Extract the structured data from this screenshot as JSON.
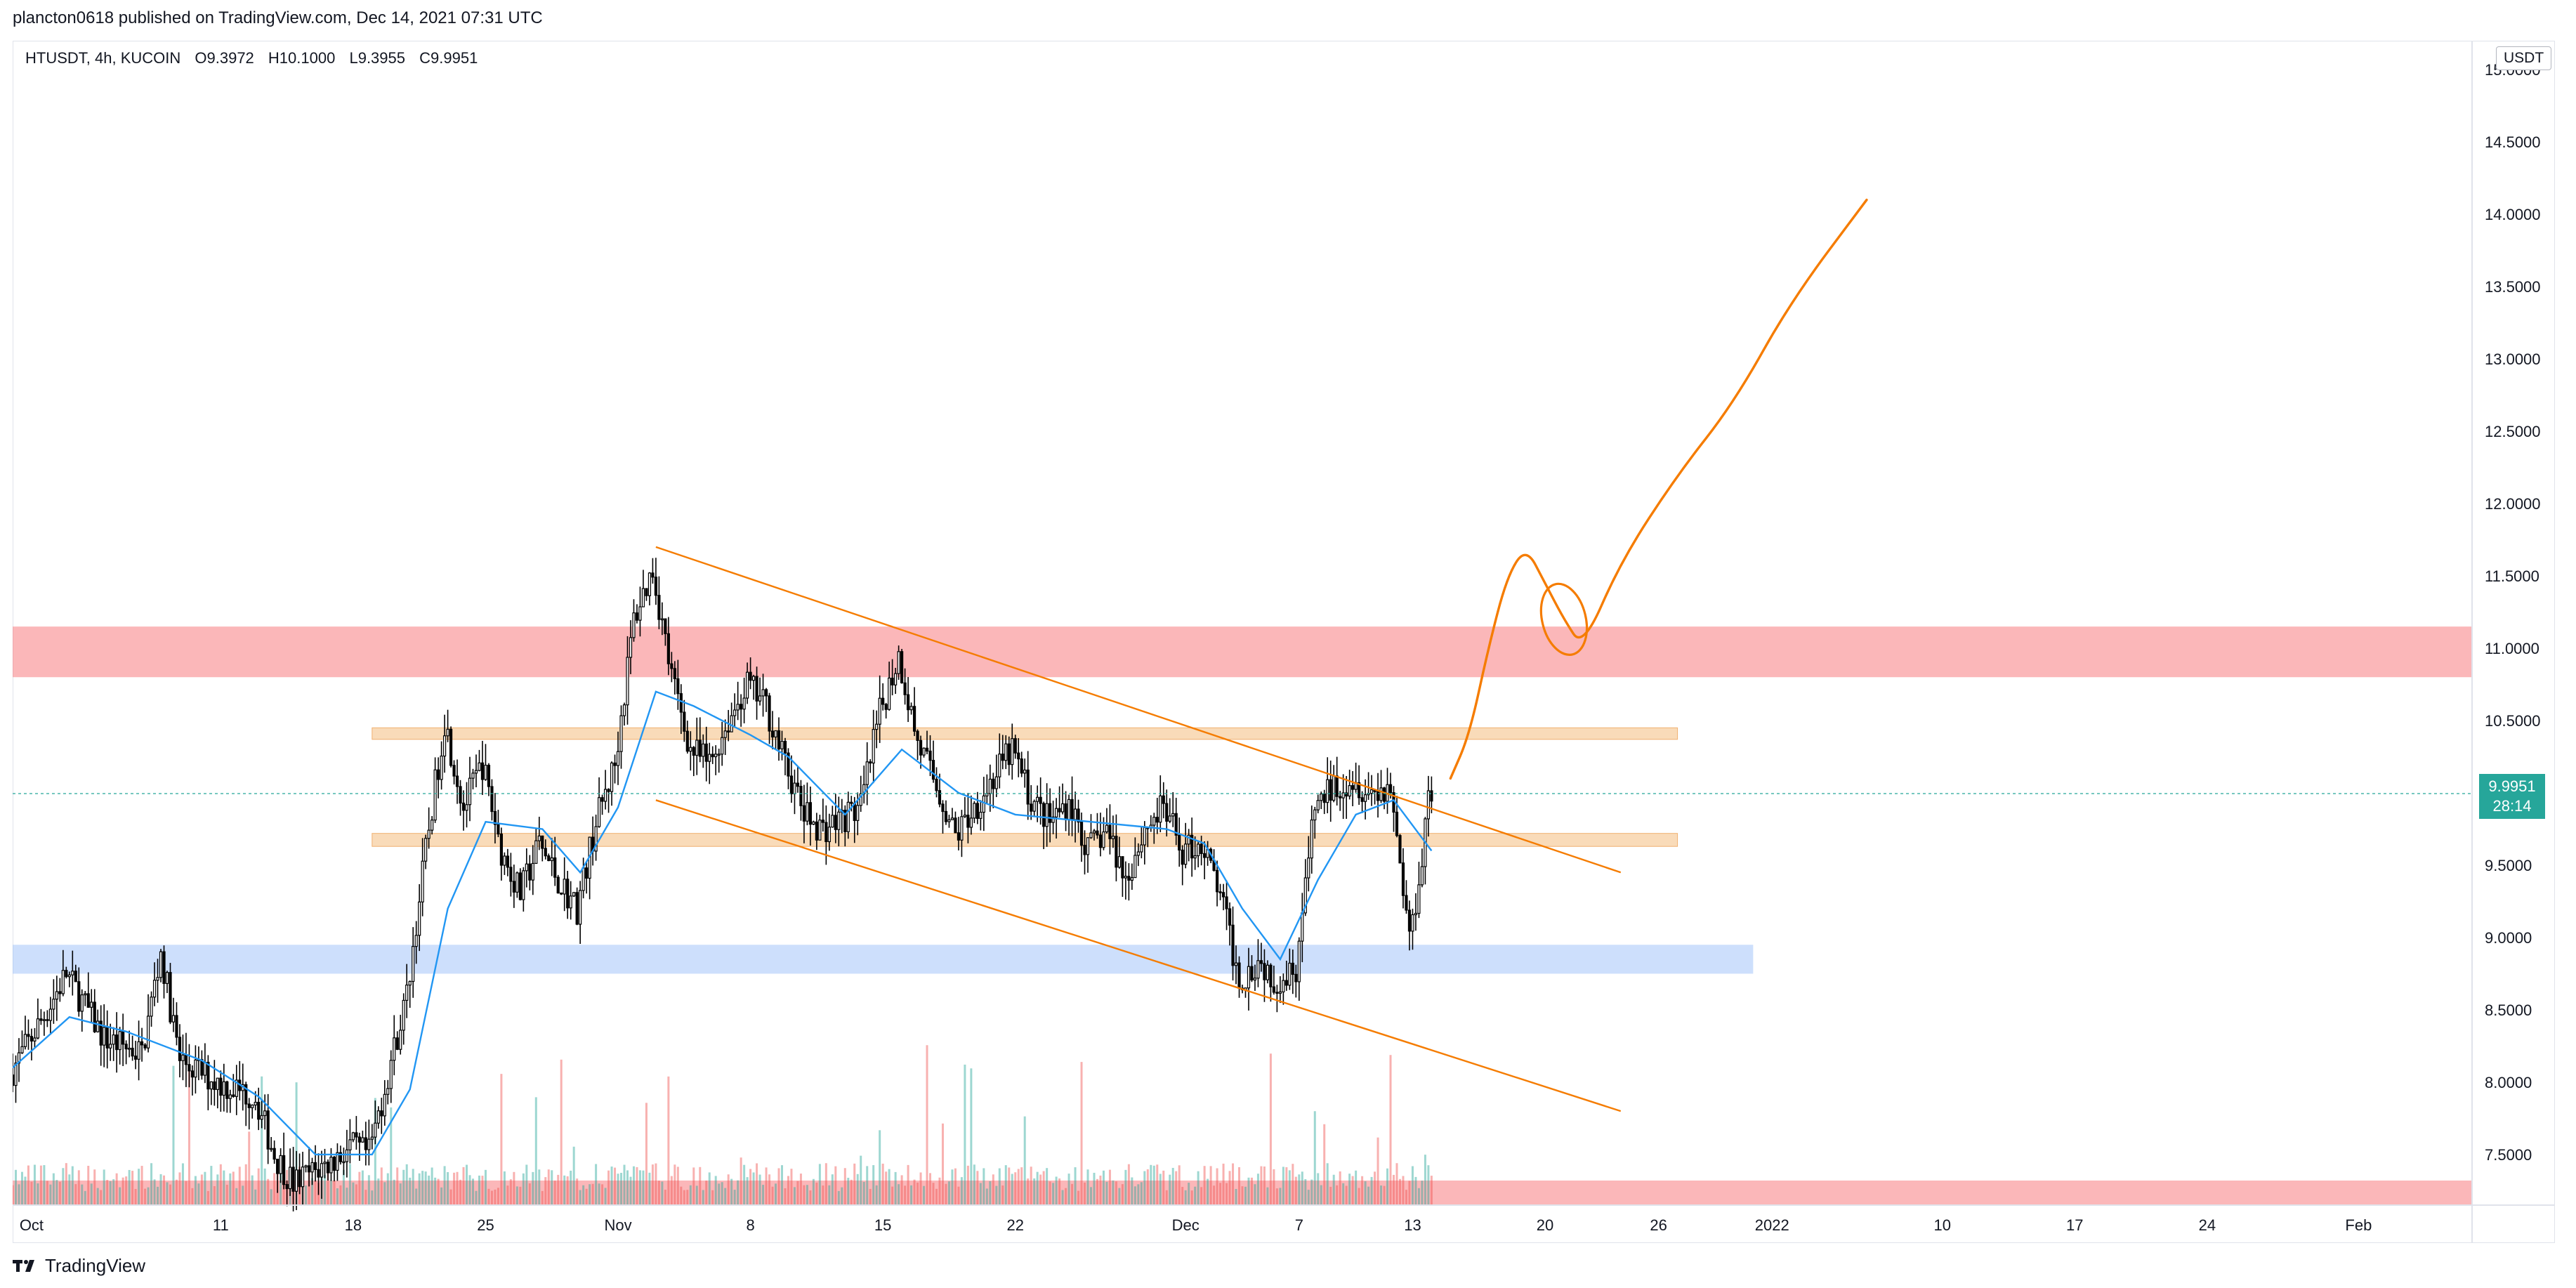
{
  "header": {
    "published": "plancton0618 published on TradingView.com, Dec 14, 2021 07:31 UTC"
  },
  "legend": {
    "symbol": "HTUSDT, 4h, KUCOIN",
    "open": "O9.3972",
    "high": "H10.1000",
    "low": "L9.3955",
    "close": "C9.9951"
  },
  "currency": "USDT",
  "price_tag": {
    "price": "9.9951",
    "countdown": "28:14"
  },
  "footer": {
    "brand": "TradingView"
  },
  "colors": {
    "up": "#26a69a",
    "down": "#ef5350",
    "candle_down_body": "#000000",
    "ma": "#2196f3",
    "trendline": "#f57c00",
    "resistance_zone": "#f77c80",
    "support_zone": "#90b8f8",
    "sr_zone": "#f5c38b"
  },
  "chart_data": {
    "type": "candlestick",
    "title": "HTUSDT, 4h, KUCOIN",
    "ylim": [
      7.15,
      15.2
    ],
    "y_ticks": [
      "15.0000",
      "14.5000",
      "14.0000",
      "13.5000",
      "13.0000",
      "12.5000",
      "12.0000",
      "11.5000",
      "11.0000",
      "10.5000",
      "10.0000",
      "9.5000",
      "9.0000",
      "8.5000",
      "8.0000",
      "7.5000"
    ],
    "x_range": [
      "2021-09-30",
      "2022-02-07"
    ],
    "x_ticks": [
      {
        "label": "Oct",
        "date": "2021-10-01"
      },
      {
        "label": "11",
        "date": "2021-10-11"
      },
      {
        "label": "18",
        "date": "2021-10-18"
      },
      {
        "label": "25",
        "date": "2021-10-25"
      },
      {
        "label": "Nov",
        "date": "2021-11-01"
      },
      {
        "label": "8",
        "date": "2021-11-08"
      },
      {
        "label": "15",
        "date": "2021-11-15"
      },
      {
        "label": "22",
        "date": "2021-11-22"
      },
      {
        "label": "Dec",
        "date": "2021-12-01"
      },
      {
        "label": "7",
        "date": "2021-12-07"
      },
      {
        "label": "13",
        "date": "2021-12-13"
      },
      {
        "label": "20",
        "date": "2021-12-20"
      },
      {
        "label": "26",
        "date": "2021-12-26"
      },
      {
        "label": "2022",
        "date": "2022-01-01"
      },
      {
        "label": "10",
        "date": "2022-01-10"
      },
      {
        "label": "17",
        "date": "2022-01-17"
      },
      {
        "label": "24",
        "date": "2022-01-24"
      },
      {
        "label": "Feb",
        "date": "2022-02-01"
      }
    ],
    "price_path": [
      [
        "2021-09-30",
        8.05
      ],
      [
        "2021-10-02",
        8.5
      ],
      [
        "2021-10-03",
        8.75
      ],
      [
        "2021-10-05",
        8.3
      ],
      [
        "2021-10-07",
        8.2
      ],
      [
        "2021-10-08",
        8.9
      ],
      [
        "2021-10-09",
        8.15
      ],
      [
        "2021-10-11",
        8.0
      ],
      [
        "2021-10-13",
        7.9
      ],
      [
        "2021-10-14",
        7.5
      ],
      [
        "2021-10-15",
        7.3
      ],
      [
        "2021-10-17",
        7.45
      ],
      [
        "2021-10-18",
        7.55
      ],
      [
        "2021-10-19",
        7.5
      ],
      [
        "2021-10-21",
        8.6
      ],
      [
        "2021-10-22",
        9.6
      ],
      [
        "2021-10-23",
        10.5
      ],
      [
        "2021-10-24",
        9.9
      ],
      [
        "2021-10-25",
        10.2
      ],
      [
        "2021-10-26",
        9.6
      ],
      [
        "2021-10-27",
        9.3
      ],
      [
        "2021-10-28",
        9.65
      ],
      [
        "2021-10-29",
        9.4
      ],
      [
        "2021-10-30",
        9.2
      ],
      [
        "2021-10-31",
        9.8
      ],
      [
        "2021-11-01",
        10.2
      ],
      [
        "2021-11-02",
        11.2
      ],
      [
        "2021-11-03",
        11.55
      ],
      [
        "2021-11-04",
        10.8
      ],
      [
        "2021-11-05",
        10.3
      ],
      [
        "2021-11-06",
        10.2
      ],
      [
        "2021-11-07",
        10.5
      ],
      [
        "2021-11-08",
        10.75
      ],
      [
        "2021-11-09",
        10.6
      ],
      [
        "2021-11-10",
        10.2
      ],
      [
        "2021-11-11",
        9.85
      ],
      [
        "2021-11-12",
        9.75
      ],
      [
        "2021-11-14",
        9.9
      ],
      [
        "2021-11-15",
        10.55
      ],
      [
        "2021-11-16",
        10.95
      ],
      [
        "2021-11-17",
        10.35
      ],
      [
        "2021-11-18",
        10.05
      ],
      [
        "2021-11-19",
        9.7
      ],
      [
        "2021-11-21",
        10.1
      ],
      [
        "2021-11-22",
        10.3
      ],
      [
        "2021-11-23",
        9.95
      ],
      [
        "2021-11-24",
        9.8
      ],
      [
        "2021-11-25",
        9.95
      ],
      [
        "2021-11-26",
        9.6
      ],
      [
        "2021-11-27",
        9.75
      ],
      [
        "2021-11-28",
        9.4
      ],
      [
        "2021-11-29",
        9.75
      ],
      [
        "2021-11-30",
        9.9
      ],
      [
        "2021-12-01",
        9.6
      ],
      [
        "2021-12-02",
        9.65
      ],
      [
        "2021-12-03",
        9.3
      ],
      [
        "2021-12-04",
        8.7
      ],
      [
        "2021-12-05",
        8.85
      ],
      [
        "2021-12-06",
        8.7
      ],
      [
        "2021-12-07",
        8.8
      ],
      [
        "2021-12-08",
        9.9
      ],
      [
        "2021-12-09",
        10.05
      ],
      [
        "2021-12-10",
        10.1
      ],
      [
        "2021-12-11",
        10.0
      ],
      [
        "2021-12-12",
        10.05
      ],
      [
        "2021-12-13",
        9.0
      ],
      [
        "2021-12-13T12:00",
        9.4
      ],
      [
        "2021-12-14",
        9.995
      ]
    ],
    "moving_average": [
      [
        "2021-09-30",
        8.1
      ],
      [
        "2021-10-03",
        8.45
      ],
      [
        "2021-10-06",
        8.35
      ],
      [
        "2021-10-10",
        8.15
      ],
      [
        "2021-10-13",
        7.9
      ],
      [
        "2021-10-16",
        7.5
      ],
      [
        "2021-10-19",
        7.5
      ],
      [
        "2021-10-21",
        7.95
      ],
      [
        "2021-10-23",
        9.2
      ],
      [
        "2021-10-25",
        9.8
      ],
      [
        "2021-10-28",
        9.75
      ],
      [
        "2021-10-30",
        9.45
      ],
      [
        "2021-11-01",
        9.9
      ],
      [
        "2021-11-03",
        10.7
      ],
      [
        "2021-11-05",
        10.6
      ],
      [
        "2021-11-08",
        10.4
      ],
      [
        "2021-11-10",
        10.25
      ],
      [
        "2021-11-13",
        9.85
      ],
      [
        "2021-11-16",
        10.3
      ],
      [
        "2021-11-19",
        10.0
      ],
      [
        "2021-11-22",
        9.85
      ],
      [
        "2021-11-26",
        9.8
      ],
      [
        "2021-11-30",
        9.75
      ],
      [
        "2021-12-02",
        9.65
      ],
      [
        "2021-12-04",
        9.2
      ],
      [
        "2021-12-06",
        8.85
      ],
      [
        "2021-12-08",
        9.4
      ],
      [
        "2021-12-10",
        9.85
      ],
      [
        "2021-12-12",
        9.95
      ],
      [
        "2021-12-14",
        9.6
      ]
    ],
    "zones": [
      {
        "name": "resistance",
        "from": "2021-09-30",
        "to": "2022-02-07",
        "low": 10.8,
        "high": 11.15,
        "color": "#f77c80"
      },
      {
        "name": "support",
        "from": "2021-09-30",
        "to": "2021-12-31",
        "low": 8.75,
        "high": 8.95,
        "color": "#90b8f8"
      },
      {
        "name": "level-upper",
        "from": "2021-10-19",
        "to": "2021-12-27",
        "low": 10.37,
        "high": 10.45,
        "color": "#f5c38b"
      },
      {
        "name": "level-lower",
        "from": "2021-10-19",
        "to": "2021-12-27",
        "low": 9.63,
        "high": 9.72,
        "color": "#f5c38b"
      },
      {
        "name": "volume-zone",
        "from": "2021-09-30",
        "to": "2022-02-07",
        "low": 7.15,
        "high": 7.32,
        "color": "#f77c80"
      }
    ],
    "trendlines": [
      {
        "name": "channel-top",
        "from": [
          "2021-11-03",
          11.7
        ],
        "to": [
          "2021-12-24",
          9.45
        ]
      },
      {
        "name": "channel-bottom",
        "from": [
          "2021-11-03",
          9.95
        ],
        "to": [
          "2021-12-24",
          7.8
        ]
      }
    ],
    "projection": [
      [
        "2021-12-15",
        10.1
      ],
      [
        "2021-12-16",
        10.4
      ],
      [
        "2021-12-17",
        11.0
      ],
      [
        "2021-12-18",
        11.5
      ],
      [
        "2021-12-19",
        11.7
      ],
      [
        "2021-12-20",
        11.45
      ],
      [
        "2021-12-21",
        11.2
      ],
      [
        "2021-12-22",
        11.0
      ],
      [
        "2021-12-24",
        11.6
      ],
      [
        "2021-12-27",
        12.2
      ],
      [
        "2021-12-30",
        12.7
      ],
      [
        "2022-01-02",
        13.4
      ],
      [
        "2022-01-06",
        14.1
      ]
    ],
    "projection_loop": {
      "center": [
        "2021-12-21",
        11.2
      ],
      "width_days": 2.3,
      "height_price": 0.5
    },
    "last_price": 9.9951
  }
}
